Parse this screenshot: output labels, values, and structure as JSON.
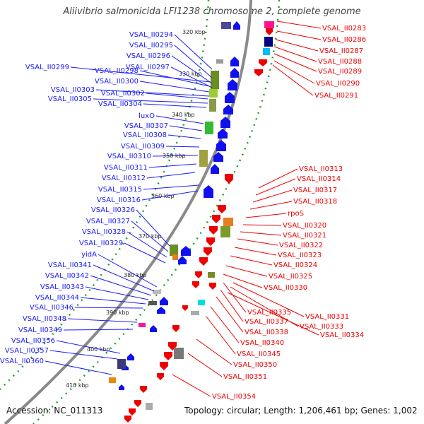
{
  "header": {
    "title": "Aliivibrio salmonicida LFI1238 chromosome 2, complete genome"
  },
  "footer": {
    "accession": "Accession: NC_011313",
    "topology": "Topology: circular; Length: 1,206,461 bp; Genes: 1,002"
  },
  "colors": {
    "forward_gene": "#1010ee",
    "reverse_gene": "#ee0000",
    "backbone": "#8a8a8a",
    "tick": "#2a9a2a"
  },
  "kbp_ticks": [
    "320 kbp",
    "330 kbp",
    "340 kbp",
    "350 kbp",
    "360 kbp",
    "370 kbp",
    "380 kbp",
    "390 kbp",
    "400 kbp",
    "410 kbp"
  ],
  "left_labels": [
    "VSAL_II0294",
    "VSAL_II0295",
    "VSAL_II0296",
    "VSAL_II0297",
    "VSAL_II0299",
    "VSAL_II0298",
    "VSAL_II0300",
    "VSAL_II0303",
    "VSAL_II0302",
    "VSAL_II0305",
    "VSAL_II0304",
    "luxO",
    "VSAL_II0307",
    "VSAL_II0308",
    "VSAL_II0309",
    "VSAL_II0310",
    "VSAL_II0311",
    "VSAL_II0312",
    "VSAL_II0315",
    "VSAL_II0316",
    "VSAL_II0326",
    "VSAL_II0327",
    "VSAL_II0328",
    "VSAL_II0329",
    "yidA",
    "VSAL_II0341",
    "VSAL_II0342",
    "VSAL_II0343",
    "VSAL_II0344",
    "VSAL_II0346",
    "VSAL_II0348",
    "VSAL_II0349",
    "VSAL_II0356",
    "VSAL_II0357",
    "VSAL_II0360"
  ],
  "right_labels": [
    "VSAL_II0283",
    "VSAL_II0286",
    "VSAL_II0287",
    "VSAL_II0288",
    "VSAL_II0289",
    "VSAL_II0290",
    "VSAL_II0291",
    "VSAL_II0313",
    "VSAL_II0314",
    "VSAL_II0317",
    "VSAL_II0318",
    "rpoS",
    "VSAL_II0320",
    "VSAL_II0321",
    "VSAL_II0322",
    "VSAL_II0323",
    "VSAL_II0324",
    "VSAL_II0325",
    "VSAL_II0330",
    "VSAL_II0331",
    "VSAL_II0335",
    "VSAL_II0333",
    "VSAL_II0337",
    "VSAL_II0334",
    "VSAL_II0338",
    "VSAL_II0340",
    "VSAL_II0345",
    "VSAL_II0350",
    "VSAL_II0351",
    "VSAL_II0354"
  ]
}
